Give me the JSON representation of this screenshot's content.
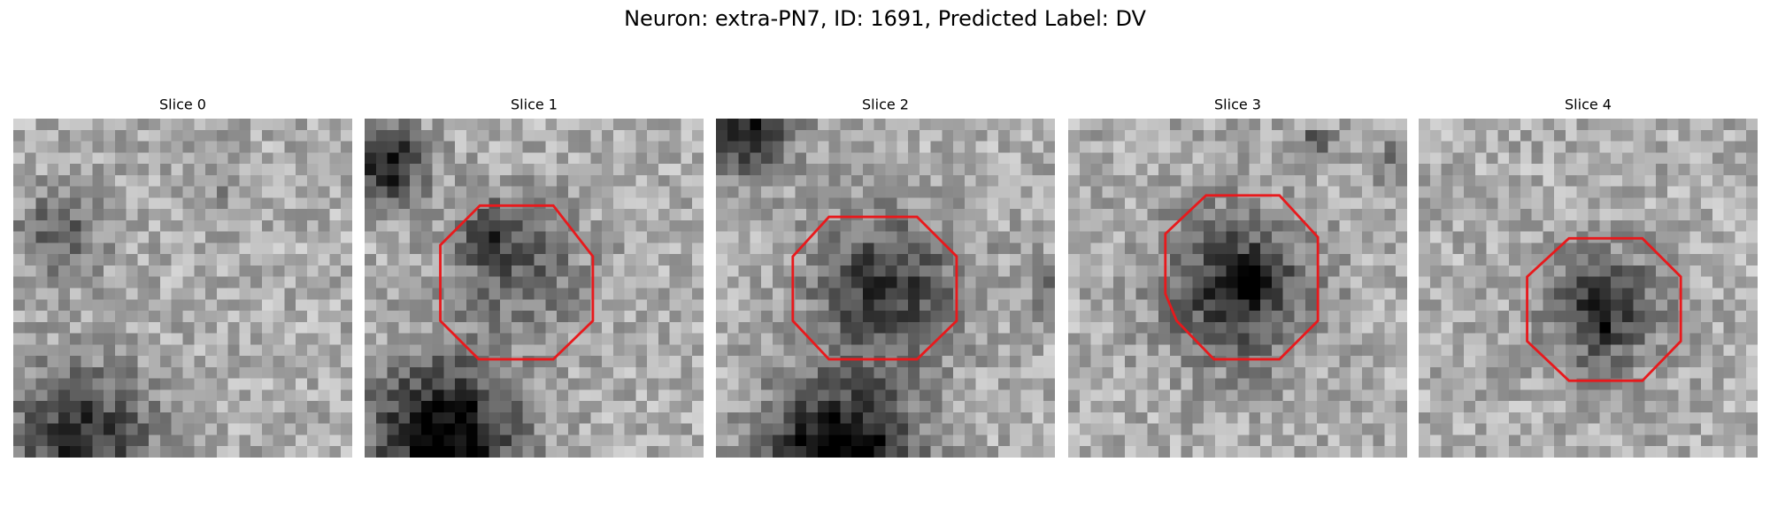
{
  "title": "Neuron: extra-PN7, ID: 1691, Predicted Label: DV",
  "panels": [
    {
      "title": "Slice 0"
    },
    {
      "title": "Slice 1"
    },
    {
      "title": "Slice 2"
    },
    {
      "title": "Slice 3"
    },
    {
      "title": "Slice 4"
    }
  ]
}
